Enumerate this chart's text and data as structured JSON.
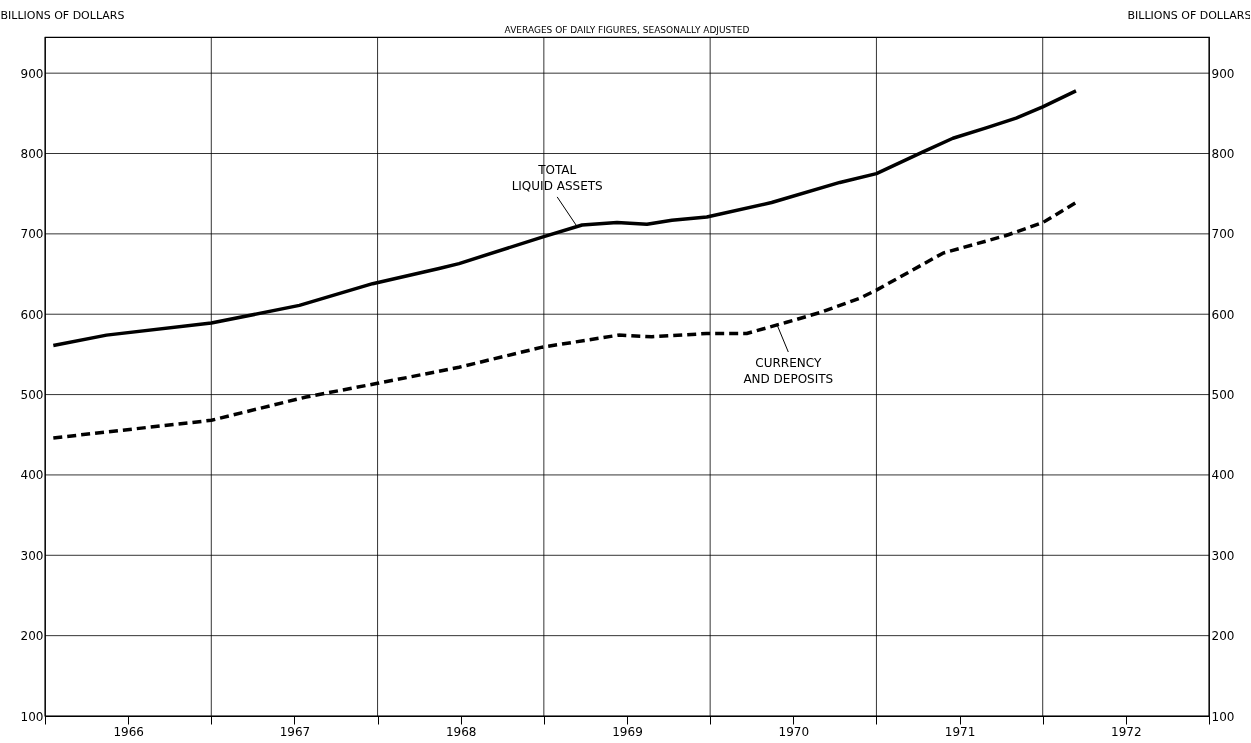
{
  "chart_data": {
    "type": "line",
    "title": "AVERAGES OF DAILY FIGURES, SEASONALLY ADJUSTED",
    "ylabel": "BILLIONS OF DOLLARS",
    "y2label": "BILLIONS OF DOLLARS",
    "xlim": [
      1966,
      1973
    ],
    "xticks": [
      {
        "value": 1966,
        "label": null
      },
      {
        "value": 1966.5,
        "label": "1966"
      },
      {
        "value": 1967,
        "label": null
      },
      {
        "value": 1967.5,
        "label": "1967"
      },
      {
        "value": 1968,
        "label": null
      },
      {
        "value": 1968.5,
        "label": "1968"
      },
      {
        "value": 1969,
        "label": null
      },
      {
        "value": 1969.5,
        "label": "1969"
      },
      {
        "value": 1970,
        "label": null
      },
      {
        "value": 1970.5,
        "label": "1970"
      },
      {
        "value": 1971,
        "label": null
      },
      {
        "value": 1971.5,
        "label": "1971"
      },
      {
        "value": 1972,
        "label": null
      },
      {
        "value": 1972.5,
        "label": "1972"
      },
      {
        "value": 1973,
        "label": null
      }
    ],
    "ylim": [
      100,
      945
    ],
    "yticks": [
      100,
      200,
      300,
      400,
      500,
      600,
      700,
      800,
      900
    ],
    "y2lim": [
      100,
      945
    ],
    "y2ticks": [
      100,
      200,
      300,
      400,
      500,
      600,
      700,
      800,
      900
    ],
    "grid": true,
    "series": [
      {
        "color": "#000000",
        "line_style": "solid",
        "x": [
          1966.05,
          1966.37,
          1967.0,
          1967.53,
          1967.97,
          1968.37,
          1968.49,
          1968.99,
          1969.23,
          1969.44,
          1969.62,
          1969.77,
          1969.98,
          1970.37,
          1970.78,
          1971.0,
          1971.28,
          1971.46,
          1971.66,
          1971.84,
          1972.0,
          1972.2
        ],
        "values": [
          561,
          574,
          589,
          611,
          638,
          657,
          663,
          696,
          711,
          714,
          712,
          717,
          721,
          739,
          764,
          775,
          802,
          819,
          832,
          844,
          858,
          878
        ]
      },
      {
        "color": "#000000",
        "line_style": "dashed",
        "x": [
          1966.05,
          1967.0,
          1967.57,
          1968.0,
          1968.49,
          1968.99,
          1969.45,
          1969.65,
          1969.98,
          1970.22,
          1970.46,
          1970.66,
          1970.9,
          1971.0,
          1971.4,
          1971.78,
          1972.0,
          1972.2
        ],
        "values": [
          446,
          468,
          497,
          514,
          534,
          559,
          574,
          572,
          576,
          576,
          590,
          602,
          620,
          630,
          676,
          698,
          714,
          739
        ]
      }
    ],
    "annotations": [
      {
        "text": "TOTAL\nLIQUID ASSETS",
        "x": 1969.2,
        "y": 709
      },
      {
        "text": "CURRENCY\nAND DEPOSITS",
        "x": 1970.4,
        "y": 588
      }
    ]
  }
}
